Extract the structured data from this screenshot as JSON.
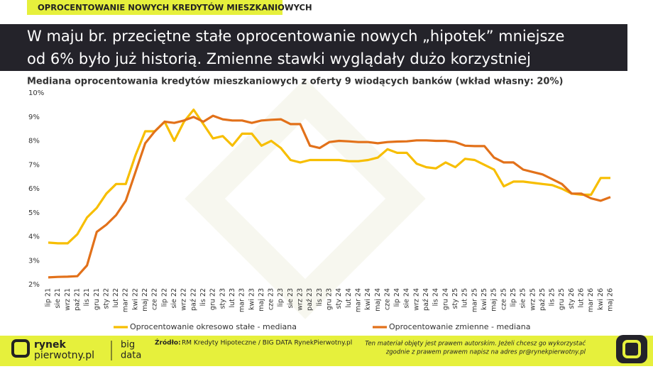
{
  "badge": "OPROCENTOWANIE NOWYCH KREDYTÓW MIESZKANIOWYCH",
  "headline": [
    "W maju br. przeciętne stałe oprocentowanie nowych „hipotek” mniejsze",
    "od 6% było już historią. Zmienne stawki wyglądały dużo korzystniej"
  ],
  "chart_data": {
    "type": "line",
    "title": "Mediana oprocentowania kredytów mieszkaniowych z oferty 9 wiodących banków (wkład własny: 20%)",
    "categories": [
      "lip 21",
      "sie 21",
      "wrz 21",
      "paź 21",
      "lis 21",
      "gru 21",
      "sty 22",
      "lut 22",
      "mar 22",
      "kwi 22",
      "maj 22",
      "cze 22",
      "lip 22",
      "sie 22",
      "wrz 22",
      "paź 22",
      "lis 22",
      "gru 22",
      "sty 23",
      "lut 23",
      "mar 23",
      "kwi 23",
      "maj 23",
      "cze 23",
      "lip 23",
      "sie 23",
      "wrz 23",
      "paź 23",
      "lis 23",
      "gru 23",
      "sty 24",
      "lut 24",
      "mar 24",
      "kwi 24",
      "maj 24",
      "cze 24",
      "lip 24",
      "sie 24",
      "wrz 24",
      "paź 24",
      "lis 24",
      "gru 24",
      "sty 25",
      "lut 25",
      "mar 25",
      "kwi 25",
      "maj 25",
      "cze 25",
      "lip 25",
      "sie 25",
      "wrz 25",
      "paź 25",
      "lis 25",
      "gru 25",
      "sty 26",
      "lut 26",
      "mar 26",
      "kwi 26",
      "maj 26"
    ],
    "series": [
      {
        "name": "Oprocentowanie okresowo stałe - mediana",
        "color": "#f7be00",
        "values": [
          3.75,
          3.72,
          3.72,
          4.1,
          4.8,
          5.2,
          5.8,
          6.2,
          6.2,
          7.4,
          8.4,
          8.4,
          8.8,
          8.0,
          8.8,
          9.3,
          8.7,
          8.1,
          8.2,
          7.8,
          8.3,
          8.3,
          7.8,
          8.0,
          7.7,
          7.2,
          7.1,
          7.2,
          7.2,
          7.2,
          7.2,
          7.15,
          7.15,
          7.2,
          7.3,
          7.65,
          7.5,
          7.5,
          7.05,
          6.9,
          6.85,
          7.1,
          6.9,
          7.25,
          7.2,
          7.0,
          6.8,
          6.1,
          6.3,
          6.3,
          6.25,
          6.2,
          6.15,
          6.0,
          5.8,
          5.75,
          5.75,
          6.45,
          6.45
        ]
      },
      {
        "name": "Oprocentowanie zmienne - mediana",
        "color": "#e2711a",
        "values": [
          2.3,
          2.32,
          2.33,
          2.35,
          2.8,
          4.2,
          4.5,
          4.9,
          5.5,
          6.7,
          7.9,
          8.4,
          8.8,
          8.75,
          8.85,
          9.0,
          8.8,
          9.05,
          8.9,
          8.85,
          8.85,
          8.75,
          8.85,
          8.88,
          8.9,
          8.7,
          8.7,
          7.8,
          7.7,
          7.95,
          8.0,
          7.98,
          7.95,
          7.95,
          7.9,
          7.95,
          7.97,
          7.98,
          8.02,
          8.02,
          8.0,
          8.0,
          7.95,
          7.8,
          7.78,
          7.78,
          7.3,
          7.1,
          7.1,
          6.8,
          6.7,
          6.6,
          6.4,
          6.2,
          5.8,
          5.8,
          5.6,
          5.5,
          5.65
        ]
      }
    ],
    "ylim": [
      2,
      10
    ],
    "yticks": [
      {
        "value": 2,
        "label": "2%"
      },
      {
        "value": 3,
        "label": "3%"
      },
      {
        "value": 4,
        "label": "4%"
      },
      {
        "value": 5,
        "label": "5%"
      },
      {
        "value": 6,
        "label": "6%"
      },
      {
        "value": 7,
        "label": "7%"
      },
      {
        "value": 8,
        "label": "8%"
      },
      {
        "value": 9,
        "label": "9%"
      },
      {
        "value": 10,
        "label": "10%"
      }
    ],
    "grid": false,
    "legend": "bottom"
  },
  "footer": {
    "logo_top": "rynek",
    "logo_bottom": "pierwotny.pl",
    "big": "big",
    "data": "data",
    "source_label": "Źródło:",
    "source": "RM Kredyty Hipoteczne / BIG DATA RynekPierwotny.pl",
    "copyright": [
      "Ten materiał objęty jest prawem autorskim. Jeżeli chcesz go wykorzystać",
      "zgodnie z prawem prawem napisz na adres pr@rynekpierwotny.pl"
    ]
  }
}
